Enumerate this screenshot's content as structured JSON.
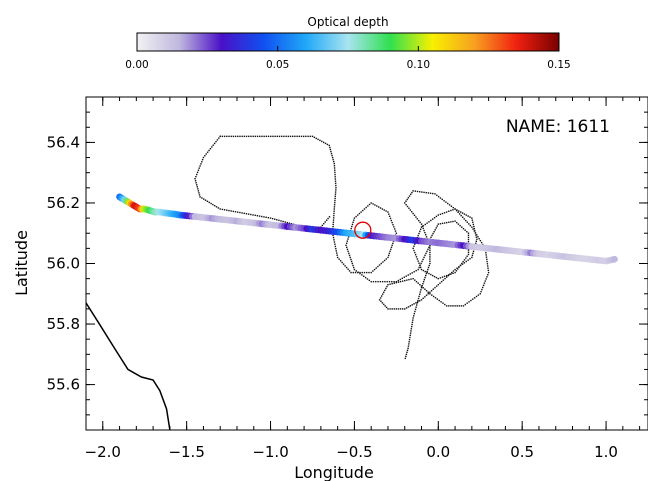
{
  "chart_data": {
    "type": "scatter",
    "title": "",
    "annotation": "NAME: 1611",
    "xlabel": "Longitude",
    "ylabel": "Latitude",
    "xlim": [
      -2.1,
      1.25
    ],
    "ylim": [
      55.45,
      56.55
    ],
    "x_ticks": [
      -2.0,
      -1.5,
      -1.0,
      -0.5,
      0.0,
      0.5,
      1.0
    ],
    "x_tick_labels": [
      "−2.0",
      "−1.5",
      "−1.0",
      "−0.5",
      "0.0",
      "0.5",
      "1.0"
    ],
    "y_ticks": [
      55.6,
      55.8,
      56.0,
      56.2,
      56.4
    ],
    "y_tick_labels": [
      "55.6",
      "55.8",
      "56.0",
      "56.2",
      "56.4"
    ],
    "grid": false,
    "colorbar": {
      "title": "Optical depth",
      "min": 0.0,
      "max": 0.15,
      "ticks": [
        0.0,
        0.05,
        0.1,
        0.15
      ],
      "tick_labels": [
        "0.00",
        "0.05",
        "0.10",
        "0.15"
      ],
      "colors": [
        "#f2f2f2",
        "#c0b8de",
        "#4a10c8",
        "#1050f0",
        "#20a8f8",
        "#a8e4f0",
        "#30e050",
        "#f8f000",
        "#f8a020",
        "#f02010",
        "#780000"
      ]
    },
    "track_series": {
      "name": "",
      "points": [
        [
          -1.9,
          56.22,
          0.05
        ],
        [
          -1.87,
          56.21,
          0.07
        ],
        [
          -1.84,
          56.2,
          0.11
        ],
        [
          -1.81,
          56.19,
          0.14
        ],
        [
          -1.78,
          56.18,
          0.13
        ],
        [
          -1.75,
          56.18,
          0.1
        ],
        [
          -1.72,
          56.175,
          0.09
        ],
        [
          -1.69,
          56.17,
          0.08
        ],
        [
          -1.66,
          56.17,
          0.075
        ],
        [
          -1.63,
          56.167,
          0.07
        ],
        [
          -1.6,
          56.165,
          0.065
        ],
        [
          -1.57,
          56.163,
          0.06
        ],
        [
          -1.54,
          56.16,
          0.055
        ],
        [
          -1.5,
          56.158,
          0.035
        ],
        [
          -1.45,
          56.155,
          0.015
        ],
        [
          -1.4,
          56.152,
          0.012
        ],
        [
          -1.35,
          56.149,
          0.018
        ],
        [
          -1.3,
          56.146,
          0.014
        ],
        [
          -1.25,
          56.143,
          0.012
        ],
        [
          -1.2,
          56.14,
          0.016
        ],
        [
          -1.15,
          56.137,
          0.01
        ],
        [
          -1.1,
          56.134,
          0.012
        ],
        [
          -1.05,
          56.131,
          0.02
        ],
        [
          -1.0,
          56.128,
          0.012
        ],
        [
          -0.95,
          56.125,
          0.014
        ],
        [
          -0.9,
          56.122,
          0.03
        ],
        [
          -0.85,
          56.119,
          0.018
        ],
        [
          -0.8,
          56.116,
          0.025
        ],
        [
          -0.75,
          56.113,
          0.04
        ],
        [
          -0.7,
          56.11,
          0.03
        ],
        [
          -0.65,
          56.107,
          0.035
        ],
        [
          -0.6,
          56.104,
          0.045
        ],
        [
          -0.55,
          56.101,
          0.06
        ],
        [
          -0.5,
          56.098,
          0.065
        ],
        [
          -0.45,
          56.095,
          0.075
        ],
        [
          -0.4,
          56.092,
          0.03
        ],
        [
          -0.35,
          56.089,
          0.025
        ],
        [
          -0.3,
          56.086,
          0.02
        ],
        [
          -0.25,
          56.083,
          0.018
        ],
        [
          -0.2,
          56.08,
          0.03
        ],
        [
          -0.15,
          56.077,
          0.04
        ],
        [
          -0.1,
          56.074,
          0.025
        ],
        [
          -0.05,
          56.071,
          0.02
        ],
        [
          0.0,
          56.068,
          0.022
        ],
        [
          0.05,
          56.065,
          0.02
        ],
        [
          0.1,
          56.062,
          0.018
        ],
        [
          0.15,
          56.059,
          0.03
        ],
        [
          0.2,
          56.056,
          0.012
        ],
        [
          0.25,
          56.053,
          0.01
        ],
        [
          0.3,
          56.05,
          0.012
        ],
        [
          0.35,
          56.047,
          0.015
        ],
        [
          0.4,
          56.044,
          0.012
        ],
        [
          0.45,
          56.041,
          0.01
        ],
        [
          0.5,
          56.038,
          0.008
        ],
        [
          0.55,
          56.035,
          0.02
        ],
        [
          0.6,
          56.032,
          0.01
        ],
        [
          0.65,
          56.029,
          0.008
        ],
        [
          0.7,
          56.026,
          0.01
        ],
        [
          0.75,
          56.023,
          0.012
        ],
        [
          0.8,
          56.02,
          0.01
        ],
        [
          0.85,
          56.017,
          0.008
        ],
        [
          0.9,
          56.014,
          0.008
        ],
        [
          0.95,
          56.011,
          0.01
        ],
        [
          1.0,
          56.008,
          0.009
        ],
        [
          1.05,
          56.014,
          0.015
        ]
      ]
    },
    "highlight_point": [
      -0.45,
      56.11
    ],
    "flight_path": [
      [
        -1.3,
        56.42
      ],
      [
        -0.75,
        56.42
      ],
      [
        -0.65,
        56.39
      ],
      [
        -0.62,
        56.33
      ],
      [
        -0.61,
        56.25
      ],
      [
        -0.62,
        56.18
      ],
      [
        -0.63,
        56.1
      ],
      [
        -0.6,
        56.02
      ],
      [
        -0.52,
        55.97
      ],
      [
        -0.4,
        55.97
      ],
      [
        -0.3,
        56.02
      ],
      [
        -0.25,
        56.1
      ],
      [
        -0.3,
        56.17
      ],
      [
        -0.4,
        56.2
      ],
      [
        -0.5,
        56.15
      ],
      [
        -0.55,
        56.06
      ],
      [
        -0.5,
        55.98
      ],
      [
        -0.4,
        55.94
      ],
      [
        -0.25,
        55.94
      ],
      [
        -0.12,
        55.98
      ],
      [
        -0.05,
        56.06
      ],
      [
        -0.1,
        56.13
      ],
      [
        -0.2,
        56.2
      ],
      [
        -0.15,
        56.24
      ],
      [
        -0.02,
        56.23
      ],
      [
        0.1,
        56.18
      ],
      [
        0.2,
        56.12
      ],
      [
        0.28,
        56.05
      ],
      [
        0.3,
        55.97
      ],
      [
        0.25,
        55.9
      ],
      [
        0.15,
        55.86
      ],
      [
        0.05,
        55.86
      ],
      [
        -0.05,
        55.9
      ],
      [
        -0.15,
        55.95
      ],
      [
        -0.3,
        55.93
      ],
      [
        -0.35,
        55.88
      ],
      [
        -0.3,
        55.85
      ],
      [
        -0.2,
        55.85
      ],
      [
        -0.1,
        55.88
      ],
      [
        0.0,
        55.93
      ],
      [
        0.1,
        55.98
      ],
      [
        0.2,
        56.02
      ],
      [
        0.23,
        56.08
      ],
      [
        0.2,
        56.15
      ],
      [
        0.1,
        56.18
      ],
      [
        0.0,
        56.16
      ],
      [
        -0.1,
        56.12
      ],
      [
        -0.15,
        56.05
      ],
      [
        -0.1,
        55.98
      ],
      [
        0.0,
        55.95
      ],
      [
        0.1,
        55.97
      ],
      [
        0.18,
        56.03
      ],
      [
        0.18,
        56.1
      ],
      [
        0.1,
        56.14
      ],
      [
        0.0,
        56.13
      ],
      [
        -0.05,
        56.08
      ],
      [
        -0.05,
        56.0
      ],
      [
        -0.1,
        55.92
      ],
      [
        -0.15,
        55.82
      ],
      [
        -0.18,
        55.72
      ],
      [
        -0.2,
        55.68
      ]
    ],
    "flight_path_extra": [
      [
        -1.3,
        56.42
      ],
      [
        -1.4,
        56.35
      ],
      [
        -1.45,
        56.28
      ],
      [
        -1.42,
        56.22
      ],
      [
        -1.3,
        56.18
      ],
      [
        -1.0,
        56.15
      ],
      [
        -0.8,
        56.12
      ],
      [
        -0.7,
        56.12
      ],
      [
        -0.64,
        56.16
      ]
    ],
    "coastline": [
      [
        -2.1,
        55.87
      ],
      [
        -2.02,
        55.8
      ],
      [
        -1.93,
        55.72
      ],
      [
        -1.85,
        55.65
      ],
      [
        -1.77,
        55.625
      ],
      [
        -1.7,
        55.615
      ],
      [
        -1.66,
        55.58
      ],
      [
        -1.62,
        55.52
      ],
      [
        -1.6,
        55.45
      ]
    ]
  }
}
